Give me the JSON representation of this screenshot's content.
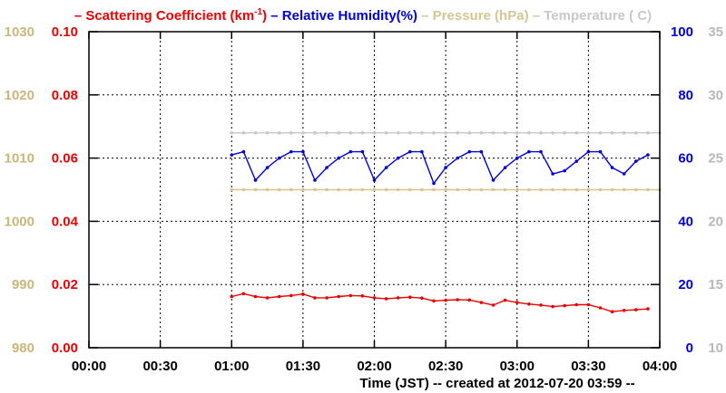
{
  "chart_data": {
    "type": "line",
    "legend": {
      "placement": "top",
      "items": [
        {
          "key": "scat",
          "prefix": "– ",
          "text": "Scattering Coefficient (km",
          "sup": "-1",
          "suffix": ")",
          "color": "#ee0000"
        },
        {
          "key": "rh",
          "prefix": "– ",
          "text": "Relative Humidity(%)",
          "color": "#0000dd"
        },
        {
          "key": "pres",
          "prefix": "– ",
          "text": "Pressure (hPa)",
          "color": "#d4c690"
        },
        {
          "key": "temp",
          "prefix": "– ",
          "text": "Temperature (",
          "suffix": "C)",
          "color": "#c8c8c8"
        }
      ]
    },
    "xlabel": "Time (JST)   -- created at 2012-07-20 03:59 --",
    "x_range": [
      0,
      240
    ],
    "x_ticks": [
      0,
      30,
      60,
      90,
      120,
      150,
      180,
      210,
      240
    ],
    "x_tick_labels": [
      "00:00",
      "00:30",
      "01:00",
      "01:30",
      "02:00",
      "02:30",
      "03:00",
      "03:30",
      "04:00"
    ],
    "grid": true,
    "axes": {
      "pressure": {
        "side": "left-outer",
        "range": [
          980,
          1030
        ],
        "ticks": [
          "980",
          "990",
          "1000",
          "1010",
          "1020",
          "1030"
        ],
        "color": "#c8b878"
      },
      "scattering": {
        "side": "left-inner",
        "range": [
          0,
          0.1
        ],
        "ticks": [
          "0.00",
          "0.02",
          "0.04",
          "0.06",
          "0.08",
          "0.10"
        ],
        "color": "#ee0000"
      },
      "humidity": {
        "side": "right-inner",
        "range": [
          0,
          100
        ],
        "ticks": [
          "0",
          "20",
          "40",
          "60",
          "80",
          "100"
        ],
        "color": "#0000dd"
      },
      "temperature": {
        "side": "right-outer",
        "range": [
          10,
          35
        ],
        "ticks": [
          "10",
          "15",
          "20",
          "25",
          "30",
          "35"
        ],
        "color": "#b8b8b8"
      }
    },
    "series": [
      {
        "key": "rh",
        "axis": "humidity",
        "color": "#0000dd",
        "x": [
          60,
          65,
          70,
          75,
          80,
          85,
          90,
          95,
          100,
          105,
          110,
          115,
          120,
          125,
          130,
          135,
          140,
          145,
          150,
          155,
          160,
          165,
          170,
          175,
          180,
          185,
          190,
          195,
          200,
          205,
          210,
          215,
          220,
          225,
          230,
          235
        ],
        "y": [
          61,
          62,
          53,
          57,
          60,
          62,
          62,
          53,
          57,
          60,
          62,
          62,
          53,
          57,
          60,
          62,
          62,
          52,
          57,
          60,
          62,
          62,
          53,
          57,
          60,
          62,
          62,
          55,
          56,
          59,
          62,
          62,
          57,
          55,
          59,
          61
        ]
      },
      {
        "key": "scat",
        "axis": "scattering",
        "color": "#ee0000",
        "x": [
          60,
          65,
          70,
          75,
          80,
          85,
          90,
          95,
          100,
          105,
          110,
          115,
          120,
          125,
          130,
          135,
          140,
          145,
          150,
          155,
          160,
          165,
          170,
          175,
          180,
          185,
          190,
          195,
          200,
          205,
          210,
          215,
          220,
          225,
          230,
          235
        ],
        "y": [
          0.0162,
          0.0171,
          0.0162,
          0.0158,
          0.0162,
          0.0165,
          0.017,
          0.0158,
          0.0158,
          0.0162,
          0.0165,
          0.0164,
          0.0158,
          0.0155,
          0.0158,
          0.016,
          0.0157,
          0.0148,
          0.015,
          0.0152,
          0.0151,
          0.0143,
          0.0135,
          0.015,
          0.0143,
          0.0138,
          0.0135,
          0.013,
          0.0133,
          0.0136,
          0.0136,
          0.0126,
          0.0114,
          0.0118,
          0.012,
          0.0123
        ]
      },
      {
        "key": "pres",
        "axis": "pressure",
        "color": "#d4c690",
        "x": [
          60,
          65,
          70,
          75,
          80,
          85,
          90,
          95,
          100,
          105,
          110,
          115,
          120,
          125,
          130,
          135,
          140,
          145,
          150,
          155,
          160,
          165,
          170,
          175,
          180,
          185,
          190,
          195,
          200,
          205,
          210,
          215,
          220,
          225,
          230,
          235,
          240
        ],
        "y": [
          1005,
          1005,
          1005,
          1005,
          1005,
          1005,
          1005,
          1005,
          1005,
          1005,
          1005,
          1005,
          1005,
          1005,
          1005,
          1005,
          1005,
          1005,
          1005,
          1005,
          1005,
          1005,
          1005,
          1005,
          1005,
          1005,
          1005,
          1005,
          1005,
          1005,
          1005,
          1005,
          1005,
          1005,
          1005,
          1005,
          1005
        ]
      },
      {
        "key": "temp",
        "axis": "temperature",
        "color": "#c8c8c8",
        "x": [
          60,
          65,
          70,
          75,
          80,
          85,
          90,
          95,
          100,
          105,
          110,
          115,
          120,
          125,
          130,
          135,
          140,
          145,
          150,
          155,
          160,
          165,
          170,
          175,
          180,
          185,
          190,
          195,
          200,
          205,
          210,
          215,
          220,
          225,
          230,
          235,
          240
        ],
        "y": [
          27,
          27,
          27,
          27,
          27,
          27,
          27,
          27,
          27,
          27,
          27,
          27,
          27,
          27,
          27,
          27,
          27,
          27,
          27,
          27,
          27,
          27,
          27,
          27,
          27,
          27,
          27,
          27,
          27,
          27,
          27,
          27,
          27,
          27,
          27,
          27,
          27
        ]
      }
    ]
  }
}
